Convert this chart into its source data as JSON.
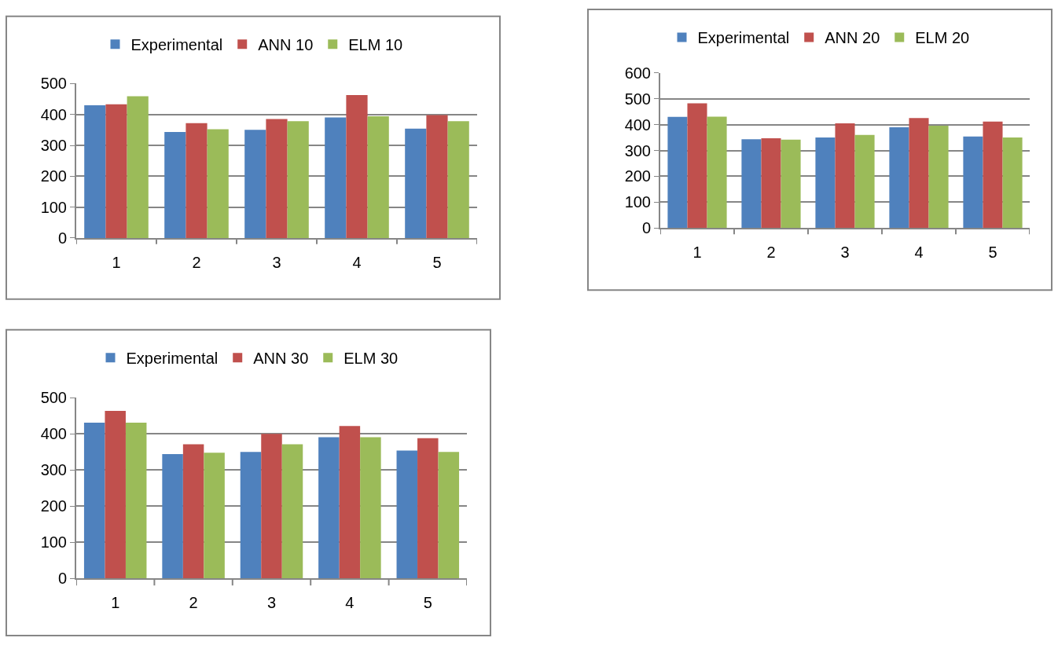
{
  "chart_data": [
    {
      "type": "bar",
      "categories": [
        "1",
        "2",
        "3",
        "4",
        "5"
      ],
      "ylim": [
        0,
        500
      ],
      "yticks": [
        0,
        100,
        200,
        300,
        400,
        500
      ],
      "grid": "y",
      "legend": "top",
      "series": [
        {
          "name": "Experimental",
          "color": "#4f81bd",
          "values": [
            430,
            343,
            350,
            390,
            354
          ]
        },
        {
          "name": "ANN 10",
          "color": "#c0504d",
          "values": [
            433,
            372,
            385,
            463,
            398
          ]
        },
        {
          "name": "ELM 10",
          "color": "#9bbb59",
          "values": [
            459,
            352,
            378,
            394,
            378
          ]
        }
      ]
    },
    {
      "type": "bar",
      "categories": [
        "1",
        "2",
        "3",
        "4",
        "5"
      ],
      "ylim": [
        0,
        600
      ],
      "yticks": [
        0,
        100,
        200,
        300,
        400,
        500,
        600
      ],
      "grid": "y",
      "legend": "top",
      "series": [
        {
          "name": "Experimental",
          "color": "#4f81bd",
          "values": [
            430,
            343,
            350,
            390,
            354
          ]
        },
        {
          "name": "ANN 20",
          "color": "#c0504d",
          "values": [
            482,
            347,
            405,
            425,
            412
          ]
        },
        {
          "name": "ELM 20",
          "color": "#9bbb59",
          "values": [
            431,
            342,
            360,
            396,
            350
          ]
        }
      ]
    },
    {
      "type": "bar",
      "categories": [
        "1",
        "2",
        "3",
        "4",
        "5"
      ],
      "ylim": [
        0,
        500
      ],
      "yticks": [
        0,
        100,
        200,
        300,
        400,
        500
      ],
      "grid": "y",
      "legend": "top",
      "series": [
        {
          "name": "Experimental",
          "color": "#4f81bd",
          "values": [
            431,
            344,
            350,
            391,
            354
          ]
        },
        {
          "name": "ANN 30",
          "color": "#c0504d",
          "values": [
            464,
            371,
            400,
            422,
            388
          ]
        },
        {
          "name": "ELM 30",
          "color": "#9bbb59",
          "values": [
            431,
            348,
            371,
            391,
            350
          ]
        }
      ]
    }
  ]
}
